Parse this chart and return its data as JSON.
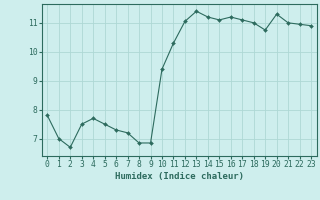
{
  "x": [
    0,
    1,
    2,
    3,
    4,
    5,
    6,
    7,
    8,
    9,
    10,
    11,
    12,
    13,
    14,
    15,
    16,
    17,
    18,
    19,
    20,
    21,
    22,
    23
  ],
  "y": [
    7.8,
    7.0,
    6.7,
    7.5,
    7.7,
    7.5,
    7.3,
    7.2,
    6.85,
    6.85,
    9.4,
    10.3,
    11.05,
    11.4,
    11.2,
    11.1,
    11.2,
    11.1,
    11.0,
    10.75,
    11.3,
    11.0,
    10.95,
    10.9
  ],
  "line_color": "#2d6b5e",
  "marker": "D",
  "markersize": 2.0,
  "linewidth": 0.8,
  "background_color": "#ceeeed",
  "grid_color": "#aed8d5",
  "xlabel": "Humidex (Indice chaleur)",
  "xlabel_fontsize": 6.5,
  "tick_fontsize": 5.8,
  "yticks": [
    7,
    8,
    9,
    10,
    11
  ],
  "xticks": [
    0,
    1,
    2,
    3,
    4,
    5,
    6,
    7,
    8,
    9,
    10,
    11,
    12,
    13,
    14,
    15,
    16,
    17,
    18,
    19,
    20,
    21,
    22,
    23
  ],
  "xlim": [
    -0.5,
    23.5
  ],
  "ylim": [
    6.4,
    11.65
  ]
}
